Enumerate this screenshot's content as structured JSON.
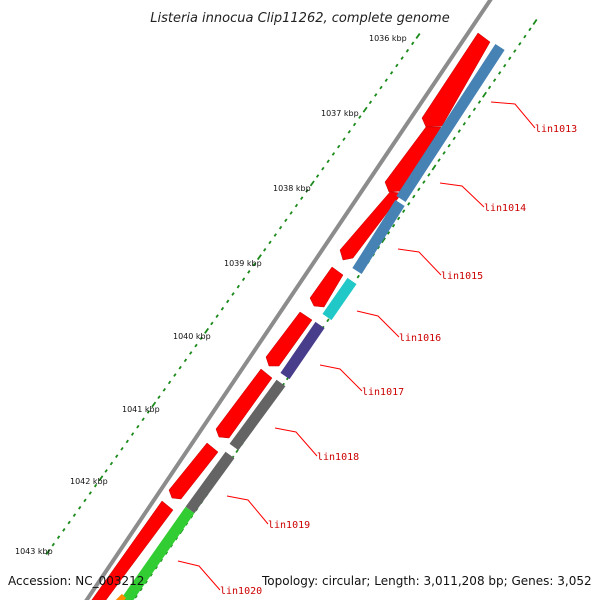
{
  "title": "Listeria innocua Clip11262, complete genome",
  "footer": {
    "accession": "Accession: NC_003212",
    "summary": "Topology: circular; Length: 3,011,208 bp; Genes: 3,052"
  },
  "ruler_labels": [
    "1036 kbp",
    "1037 kbp",
    "1038 kbp",
    "1039 kbp",
    "1040 kbp",
    "1041 kbp",
    "1042 kbp",
    "1043 kbp"
  ],
  "gene_labels": [
    "lin1013",
    "lin1014",
    "lin1015",
    "lin1016",
    "lin1017",
    "lin1018",
    "lin1019",
    "lin1020"
  ],
  "colors": {
    "red_track": "#ff0000",
    "steelblue": "#4682b4",
    "cyan": "#20c8c8",
    "purple": "#483d8b",
    "gray": "#646464",
    "green": "#32cd32",
    "orange": "#ff8c00",
    "backbone": "#8c8c8c",
    "ticks": "#1a8a1a",
    "label": "#cc0000"
  }
}
